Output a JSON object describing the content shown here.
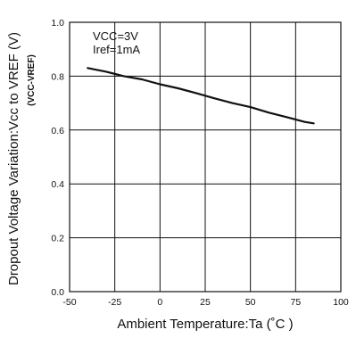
{
  "chart_data": {
    "type": "line",
    "title": "",
    "xlabel": "Ambient Temperature:Ta (˚C )",
    "ylabel": "Dropout Voltage Variation:Vcc to VREF (V)",
    "ylabel_sub": "(VCC-VREF)",
    "xlim": [
      -50,
      100
    ],
    "ylim": [
      0.0,
      1.0
    ],
    "x_ticks": [
      -50,
      -25,
      0,
      25,
      50,
      75,
      100
    ],
    "x_tick_labels": [
      "-50",
      "-25",
      "0",
      "25",
      "50",
      "75",
      "100"
    ],
    "y_ticks": [
      0.0,
      0.2,
      0.4,
      0.6,
      0.8,
      1.0
    ],
    "y_tick_labels": [
      "0.0",
      "0.2",
      "0.4",
      "0.6",
      "0.8",
      "1.0"
    ],
    "grid": true,
    "annotations": [
      "VCC=3V",
      "Iref=1mA"
    ],
    "series": [
      {
        "x": [
          -40,
          -30,
          -20,
          -10,
          0,
          10,
          20,
          30,
          40,
          50,
          60,
          70,
          80,
          85
        ],
        "values": [
          0.83,
          0.817,
          0.8,
          0.788,
          0.77,
          0.755,
          0.737,
          0.718,
          0.7,
          0.685,
          0.665,
          0.648,
          0.63,
          0.625
        ]
      }
    ]
  }
}
